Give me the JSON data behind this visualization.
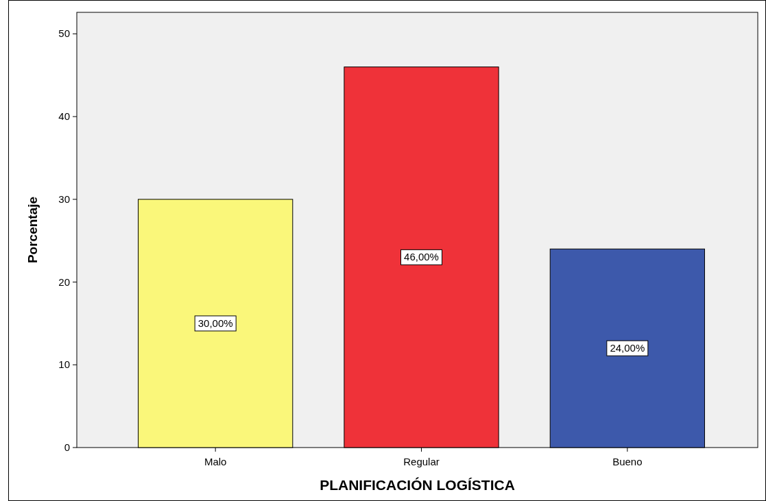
{
  "chart_data": {
    "type": "bar",
    "xlabel": "PLANIFICACIÓN LOGÍSTICA",
    "ylabel": "Porcentaje",
    "categories": [
      "Malo",
      "Regular",
      "Bueno"
    ],
    "values": [
      30,
      46,
      24
    ],
    "colors": [
      "#faf77a",
      "#ef3239",
      "#3d59ab"
    ],
    "value_labels": [
      "30,00%",
      "46,00%",
      "24,00%"
    ],
    "ylim": [
      0,
      52.6
    ],
    "yticks": [
      0,
      10,
      20,
      30,
      40,
      50
    ],
    "grid": false
  }
}
